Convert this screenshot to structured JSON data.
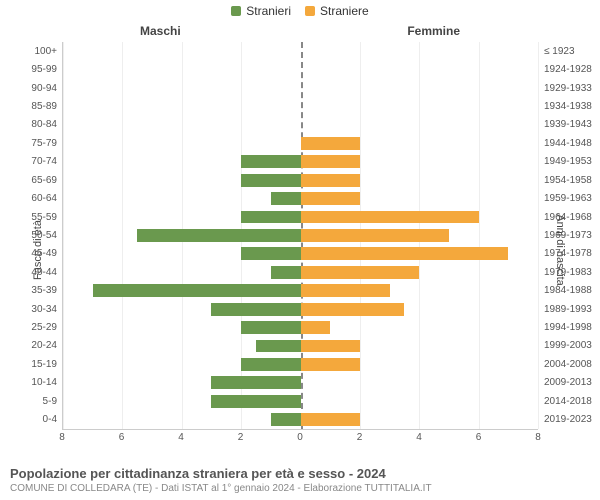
{
  "chart": {
    "type": "population-pyramid",
    "legend": [
      {
        "label": "Stranieri",
        "color": "#6a994e"
      },
      {
        "label": "Straniere",
        "color": "#f4a83c"
      }
    ],
    "side_titles": {
      "left": "Maschi",
      "right": "Femmine"
    },
    "axis_labels": {
      "left": "Fasce di età",
      "right": "Anni di nascita"
    },
    "xlim": [
      0,
      8
    ],
    "xtick_step": 2,
    "xticks_left": [
      8,
      6,
      4,
      2,
      0
    ],
    "xticks_right": [
      0,
      2,
      4,
      6,
      8
    ],
    "bar_color_left": "#6a994e",
    "bar_color_right": "#f4a83c",
    "background_color": "#ffffff",
    "grid_color": "#eeeeee",
    "centerline_color": "#888888",
    "tick_fontsize": 10,
    "label_fontsize": 11,
    "legend_fontsize": 12,
    "rows": [
      {
        "age": "100+",
        "birth": "≤ 1923",
        "m": 0,
        "f": 0
      },
      {
        "age": "95-99",
        "birth": "1924-1928",
        "m": 0,
        "f": 0
      },
      {
        "age": "90-94",
        "birth": "1929-1933",
        "m": 0,
        "f": 0
      },
      {
        "age": "85-89",
        "birth": "1934-1938",
        "m": 0,
        "f": 0
      },
      {
        "age": "80-84",
        "birth": "1939-1943",
        "m": 0,
        "f": 0
      },
      {
        "age": "75-79",
        "birth": "1944-1948",
        "m": 0,
        "f": 2
      },
      {
        "age": "70-74",
        "birth": "1949-1953",
        "m": 2,
        "f": 2
      },
      {
        "age": "65-69",
        "birth": "1954-1958",
        "m": 2,
        "f": 2
      },
      {
        "age": "60-64",
        "birth": "1959-1963",
        "m": 1,
        "f": 2
      },
      {
        "age": "55-59",
        "birth": "1964-1968",
        "m": 2,
        "f": 6
      },
      {
        "age": "50-54",
        "birth": "1969-1973",
        "m": 5.5,
        "f": 5
      },
      {
        "age": "45-49",
        "birth": "1974-1978",
        "m": 2,
        "f": 7
      },
      {
        "age": "40-44",
        "birth": "1979-1983",
        "m": 1,
        "f": 4
      },
      {
        "age": "35-39",
        "birth": "1984-1988",
        "m": 7,
        "f": 3
      },
      {
        "age": "30-34",
        "birth": "1989-1993",
        "m": 3,
        "f": 3.5
      },
      {
        "age": "25-29",
        "birth": "1994-1998",
        "m": 2,
        "f": 1
      },
      {
        "age": "20-24",
        "birth": "1999-2003",
        "m": 1.5,
        "f": 2
      },
      {
        "age": "15-19",
        "birth": "2004-2008",
        "m": 2,
        "f": 2
      },
      {
        "age": "10-14",
        "birth": "2009-2013",
        "m": 3,
        "f": 0
      },
      {
        "age": "5-9",
        "birth": "2014-2018",
        "m": 3,
        "f": 0
      },
      {
        "age": "0-4",
        "birth": "2019-2023",
        "m": 1,
        "f": 2
      }
    ]
  },
  "footer": {
    "title": "Popolazione per cittadinanza straniera per età e sesso - 2024",
    "subtitle": "COMUNE DI COLLEDARA (TE) - Dati ISTAT al 1° gennaio 2024 - Elaborazione TUTTITALIA.IT"
  }
}
